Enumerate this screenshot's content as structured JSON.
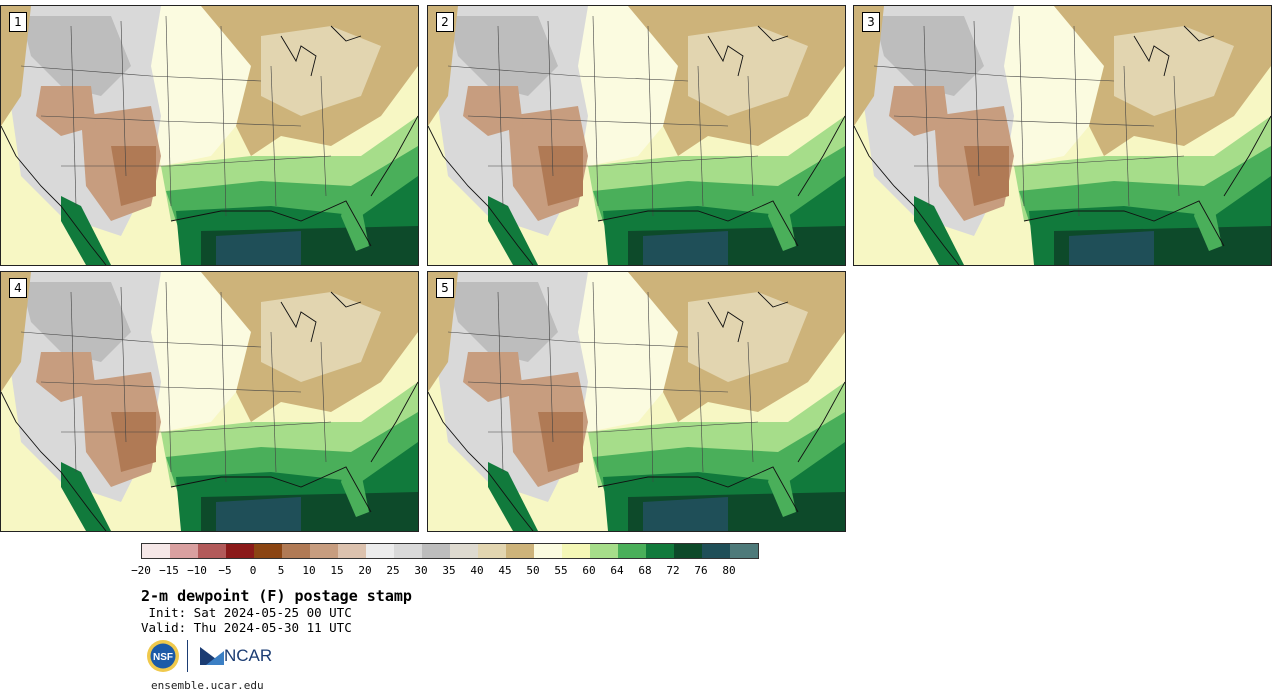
{
  "panels": [
    {
      "label": "1"
    },
    {
      "label": "2"
    },
    {
      "label": "3"
    },
    {
      "label": "4"
    },
    {
      "label": "5"
    }
  ],
  "colorbar": {
    "colors": [
      "#f5e7e7",
      "#d9a0a0",
      "#b25a5a",
      "#8b1a1a",
      "#8b4513",
      "#b07a55",
      "#c79d7f",
      "#dcc2ae",
      "#ececec",
      "#d9d9d9",
      "#bdbdbd",
      "#dedad0",
      "#e2d5b0",
      "#cdb37a",
      "#fbfbe0",
      "#f4f7b6",
      "#a6dd8a",
      "#4aaf5a",
      "#117a3c",
      "#0d4a2a",
      "#1f4f58",
      "#4e7a7a"
    ],
    "tick_labels": [
      "−20",
      "−15",
      "−10",
      "−5",
      "0",
      "5",
      "10",
      "15",
      "20",
      "25",
      "30",
      "35",
      "40",
      "45",
      "50",
      "55",
      "60",
      "64",
      "68",
      "72",
      "76",
      "80"
    ]
  },
  "title": "2-m dewpoint (F) postage stamp",
  "init_line": " Init: Sat 2024-05-25 00 UTC",
  "valid_line": "Valid: Thu 2024-05-30 11 UTC",
  "logos": {
    "nsf": "NSF",
    "ncar": "NCAR"
  },
  "footer_url": "ensemble.ucar.edu"
}
